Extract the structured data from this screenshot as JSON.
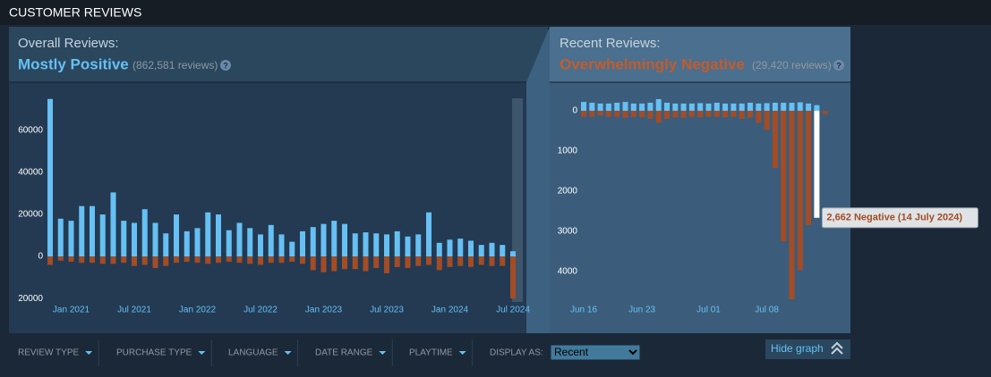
{
  "header": {
    "title": "CUSTOMER REVIEWS"
  },
  "overall": {
    "label": "Overall Reviews:",
    "rating": "Mostly Positive",
    "count": "(862,581 reviews)",
    "help": "?"
  },
  "recent": {
    "label": "Recent Reviews:",
    "rating": "Overwhelmingly Negative",
    "count": "(29,420 reviews)",
    "help": "?"
  },
  "chart_data": [
    {
      "type": "bar",
      "categories": [
        null,
        null,
        "Jan 2021",
        null,
        null,
        null,
        null,
        null,
        "Jul 2021",
        null,
        null,
        null,
        null,
        null,
        "Jan 2022",
        null,
        null,
        null,
        null,
        null,
        "Jul 2022",
        null,
        null,
        null,
        null,
        null,
        "Jan 2023",
        null,
        null,
        null,
        null,
        null,
        "Jul 2023",
        null,
        null,
        null,
        null,
        null,
        "Jan 2024",
        null,
        null,
        null,
        null,
        null,
        "Jul 2024"
      ],
      "series": [
        {
          "color": "#66c0f4",
          "values": [
            75000,
            18000,
            17000,
            24000,
            24000,
            20000,
            30500,
            17000,
            16000,
            22500,
            16000,
            11000,
            20000,
            12000,
            13500,
            21000,
            20000,
            12500,
            16000,
            13500,
            10500,
            15000,
            10500,
            7000,
            12000,
            14000,
            15500,
            17000,
            15500,
            11000,
            11500,
            11000,
            10500,
            12000,
            9500,
            10500,
            21000,
            6500,
            8000,
            8500,
            7500,
            5500,
            6500,
            5500,
            2500
          ]
        },
        {
          "color": "#a34c25",
          "values": [
            -4000,
            -2000,
            -2500,
            -3000,
            -3000,
            -3500,
            -3500,
            -3000,
            -4500,
            -4000,
            -5500,
            -4500,
            -3000,
            -2500,
            -3000,
            -3500,
            -3000,
            -2500,
            -3000,
            -3500,
            -4000,
            -3000,
            -3000,
            -2500,
            -3500,
            -6500,
            -7500,
            -7000,
            -6000,
            -6000,
            -7000,
            -5500,
            -8000,
            -5000,
            -5500,
            -4500,
            -4000,
            -6500,
            -5000,
            -4500,
            -5000,
            -4000,
            -4500,
            -4500,
            -20000
          ]
        }
      ],
      "ylim": [
        -22500,
        80000
      ],
      "yticks": [
        {
          "value": -20000,
          "label": "20000"
        },
        0,
        20000,
        40000,
        60000
      ]
    },
    {
      "type": "bar",
      "categories": [
        "Jun 16",
        null,
        null,
        null,
        null,
        null,
        null,
        "Jun 23",
        null,
        null,
        null,
        null,
        null,
        null,
        null,
        "Jul 01",
        null,
        null,
        null,
        null,
        null,
        null,
        "Jul 08",
        null,
        null,
        null,
        null,
        null,
        null,
        null
      ],
      "series": [
        {
          "color": "#66c0f4",
          "values": [
            220,
            200,
            180,
            180,
            200,
            220,
            180,
            180,
            200,
            290,
            200,
            180,
            180,
            180,
            190,
            180,
            200,
            180,
            180,
            180,
            200,
            180,
            190,
            200,
            200,
            200,
            210,
            180,
            140,
            0
          ]
        },
        {
          "color": "#a34c25",
          "values": [
            -150,
            -150,
            -120,
            -150,
            -150,
            -170,
            -150,
            -160,
            -200,
            -300,
            -200,
            -160,
            -170,
            -150,
            -160,
            -150,
            -150,
            -160,
            -150,
            -200,
            -170,
            -300,
            -470,
            -1420,
            -3250,
            -4690,
            -3960,
            -2840,
            -2662,
            -80
          ]
        }
      ],
      "highlight": {
        "series": 1,
        "index": 28,
        "color": "#ffffff"
      },
      "tooltip": "2,662 Negative (14 July 2024)",
      "ylim": [
        -4900,
        350
      ],
      "yticks": [
        0,
        {
          "value": -1000,
          "label": "1000"
        },
        {
          "value": -2000,
          "label": "2000"
        },
        {
          "value": -3000,
          "label": "3000"
        },
        {
          "value": -4000,
          "label": "4000"
        }
      ]
    }
  ],
  "filters": [
    "REVIEW TYPE",
    "PURCHASE TYPE",
    "LANGUAGE",
    "DATE RANGE",
    "PLAYTIME"
  ],
  "display_as": {
    "label": "DISPLAY AS:",
    "selected": "Recent"
  },
  "hide_graph": "Hide graph"
}
